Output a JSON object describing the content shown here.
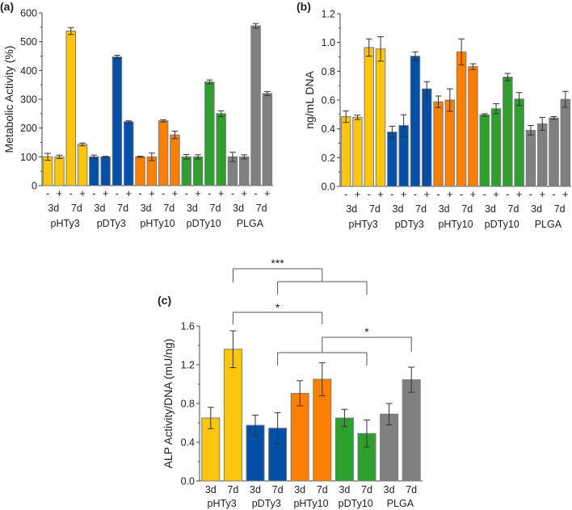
{
  "chart_data": [
    {
      "panel_label": "(a)",
      "type": "bar",
      "ylabel": "Metabolic Activity (%)",
      "ylim": [
        0,
        600
      ],
      "yticks": [
        0,
        100,
        200,
        300,
        400,
        500,
        600
      ],
      "groups": [
        "pHTy3",
        "pDTy3",
        "pHTy10",
        "pDTy10",
        "PLGA"
      ],
      "days": [
        "3d",
        "7d"
      ],
      "conditions": [
        "-",
        "+"
      ],
      "colors": [
        "#FFC60F",
        "#0050A8",
        "#FF8000",
        "#2EA02E",
        "#808080"
      ],
      "values": [
        [
          100,
          100,
          537,
          143
        ],
        [
          100,
          100,
          447,
          222
        ],
        [
          100,
          100,
          225,
          176
        ],
        [
          100,
          100,
          360,
          250
        ],
        [
          100,
          100,
          555,
          320
        ]
      ],
      "errors": [
        [
          12,
          6,
          12,
          5
        ],
        [
          6,
          2,
          6,
          3
        ],
        [
          2,
          13,
          4,
          13
        ],
        [
          8,
          7,
          7,
          10
        ],
        [
          16,
          7,
          8,
          7
        ]
      ]
    },
    {
      "panel_label": "(b)",
      "type": "bar",
      "ylabel": "ng/mL DNA",
      "ylim": [
        0,
        1.2
      ],
      "yticks": [
        "0.0",
        "0.2",
        "0.4",
        "0.6",
        "0.8",
        "1.0",
        "1.2"
      ],
      "groups": [
        "pHTy3",
        "pDTy3",
        "pHTy10",
        "pDTy10",
        "PLGA"
      ],
      "days": [
        "3d",
        "7d"
      ],
      "conditions": [
        "-",
        "+"
      ],
      "colors": [
        "#FFC60F",
        "#0050A8",
        "#FF8000",
        "#2EA02E",
        "#808080"
      ],
      "values": [
        [
          0.485,
          0.48,
          0.965,
          0.955
        ],
        [
          0.378,
          0.423,
          0.905,
          0.678
        ],
        [
          0.588,
          0.6,
          0.935,
          0.832
        ],
        [
          0.497,
          0.54,
          0.76,
          0.607
        ],
        [
          0.39,
          0.435,
          0.475,
          0.605
        ]
      ],
      "errors": [
        [
          0.04,
          0.015,
          0.06,
          0.085
        ],
        [
          0.04,
          0.075,
          0.03,
          0.05
        ],
        [
          0.04,
          0.078,
          0.09,
          0.02
        ],
        [
          0.008,
          0.035,
          0.025,
          0.045
        ],
        [
          0.033,
          0.045,
          0.01,
          0.055
        ]
      ]
    },
    {
      "panel_label": "(c)",
      "type": "bar",
      "ylabel": "ALP Activity/DNA (mU/ng)",
      "ylim": [
        0,
        1.6
      ],
      "yticks": [
        "0.0",
        "0.4",
        "0.8",
        "1.2",
        "1.6"
      ],
      "groups": [
        "pHTy3",
        "pDTy3",
        "pHTy10",
        "pDTy10",
        "PLGA"
      ],
      "days": [
        "3d",
        "7d"
      ],
      "colors": [
        "#FFC60F",
        "#0050A8",
        "#FF8000",
        "#2EA02E",
        "#808080"
      ],
      "values": [
        [
          0.65,
          1.36
        ],
        [
          0.575,
          0.545
        ],
        [
          0.905,
          1.05
        ],
        [
          0.65,
          0.49
        ],
        [
          0.69,
          1.045
        ]
      ],
      "errors": [
        [
          0.11,
          0.19
        ],
        [
          0.105,
          0.16
        ],
        [
          0.13,
          0.17
        ],
        [
          0.09,
          0.14
        ],
        [
          0.11,
          0.13
        ]
      ],
      "significance": [
        {
          "label": "***",
          "from": "pHTy3 7d",
          "to": "pDTy3 7d – pDTy10 7d"
        },
        {
          "label": "*",
          "from": "pHTy3 7d",
          "to": "pHTy10 7d"
        },
        {
          "label": "*",
          "from": "pHTy10 7d",
          "to": "pDTy3 7d – pDTy10 7d vs PLGA 7d"
        }
      ]
    }
  ]
}
